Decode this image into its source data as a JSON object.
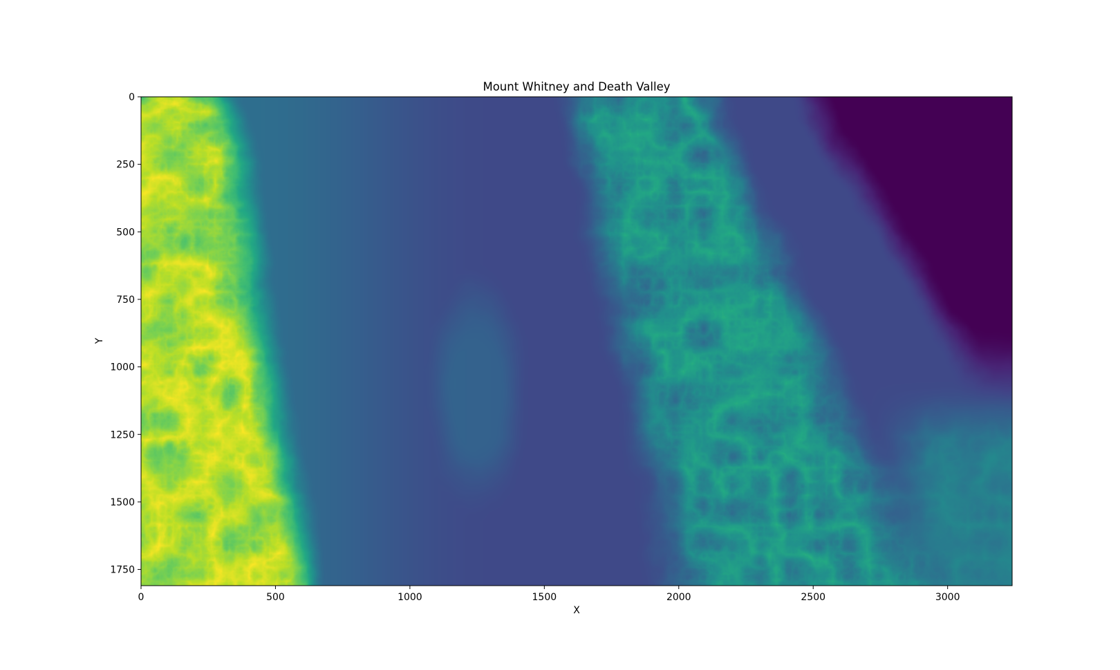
{
  "chart_data": {
    "type": "heatmap",
    "title": "Mount Whitney and Death Valley",
    "xlabel": "X",
    "ylabel": "Y",
    "xlim": [
      0,
      3240
    ],
    "ylim": [
      1810,
      0
    ],
    "y_inverted": true,
    "colormap": "viridis",
    "grid": false,
    "x_ticks": [
      0,
      500,
      1000,
      1500,
      2000,
      2500,
      3000
    ],
    "x_tick_labels": [
      "0",
      "500",
      "1000",
      "1500",
      "2000",
      "2500",
      "3000"
    ],
    "y_ticks": [
      0,
      250,
      500,
      750,
      1000,
      1250,
      1500,
      1750
    ],
    "y_tick_labels": [
      "0",
      "250",
      "500",
      "750",
      "1000",
      "1250",
      "1500",
      "1750"
    ],
    "colors": {
      "viridis_low": "#440154",
      "viridis_high": "#fde725",
      "axes_edge": "#000000",
      "background": "#ffffff"
    }
  }
}
